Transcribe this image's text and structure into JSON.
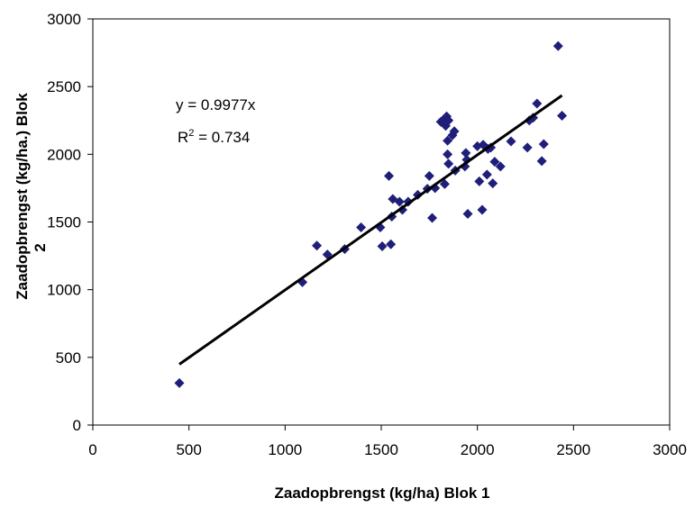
{
  "chart_data": {
    "type": "scatter",
    "xlabel": "Zaadopbrengst (kg/ha) Blok 1",
    "ylabel_line1": "Zaadopbrengst (kg/ha.) Blok",
    "ylabel_line2": "2",
    "xlim": [
      0,
      3000
    ],
    "ylim": [
      0,
      3000
    ],
    "xticks": [
      "0",
      "500",
      "1000",
      "1500",
      "2000",
      "2500",
      "3000"
    ],
    "yticks": [
      "0",
      "500",
      "1000",
      "1500",
      "2000",
      "2500",
      "3000"
    ],
    "grid": false,
    "marker_color": "#1F1F7A",
    "trendline": {
      "slope": 0.9977,
      "x_range": [
        450,
        2440
      ],
      "color": "#000000"
    },
    "annotations": {
      "equation": "y = 0.9977x",
      "r2_label": "R",
      "r2_sup": "2",
      "r2_value": " = 0.734"
    },
    "points": [
      [
        450,
        310
      ],
      [
        1090,
        1055
      ],
      [
        1165,
        1325
      ],
      [
        1220,
        1260
      ],
      [
        1310,
        1300
      ],
      [
        1395,
        1460
      ],
      [
        1495,
        1460
      ],
      [
        1505,
        1320
      ],
      [
        1540,
        1840
      ],
      [
        1550,
        1335
      ],
      [
        1555,
        1540
      ],
      [
        1560,
        1670
      ],
      [
        1595,
        1650
      ],
      [
        1610,
        1590
      ],
      [
        1640,
        1650
      ],
      [
        1690,
        1700
      ],
      [
        1740,
        1745
      ],
      [
        1750,
        1840
      ],
      [
        1765,
        1530
      ],
      [
        1780,
        1750
      ],
      [
        1810,
        2240
      ],
      [
        1820,
        2250
      ],
      [
        1830,
        1780
      ],
      [
        1835,
        2210
      ],
      [
        1840,
        2280
      ],
      [
        1845,
        2100
      ],
      [
        1845,
        2000
      ],
      [
        1850,
        1930
      ],
      [
        1850,
        2250
      ],
      [
        1870,
        2140
      ],
      [
        1880,
        2170
      ],
      [
        1885,
        1880
      ],
      [
        1935,
        1910
      ],
      [
        1940,
        2010
      ],
      [
        1945,
        1960
      ],
      [
        1950,
        1560
      ],
      [
        2000,
        2060
      ],
      [
        2010,
        1800
      ],
      [
        2025,
        1590
      ],
      [
        2030,
        2070
      ],
      [
        2050,
        1850
      ],
      [
        2055,
        2040
      ],
      [
        2070,
        2050
      ],
      [
        2080,
        1785
      ],
      [
        2090,
        1945
      ],
      [
        2120,
        1910
      ],
      [
        2175,
        2095
      ],
      [
        2260,
        2050
      ],
      [
        2270,
        2250
      ],
      [
        2290,
        2270
      ],
      [
        2310,
        2375
      ],
      [
        2335,
        1950
      ],
      [
        2345,
        2075
      ],
      [
        2420,
        2800
      ],
      [
        2440,
        2285
      ]
    ]
  }
}
